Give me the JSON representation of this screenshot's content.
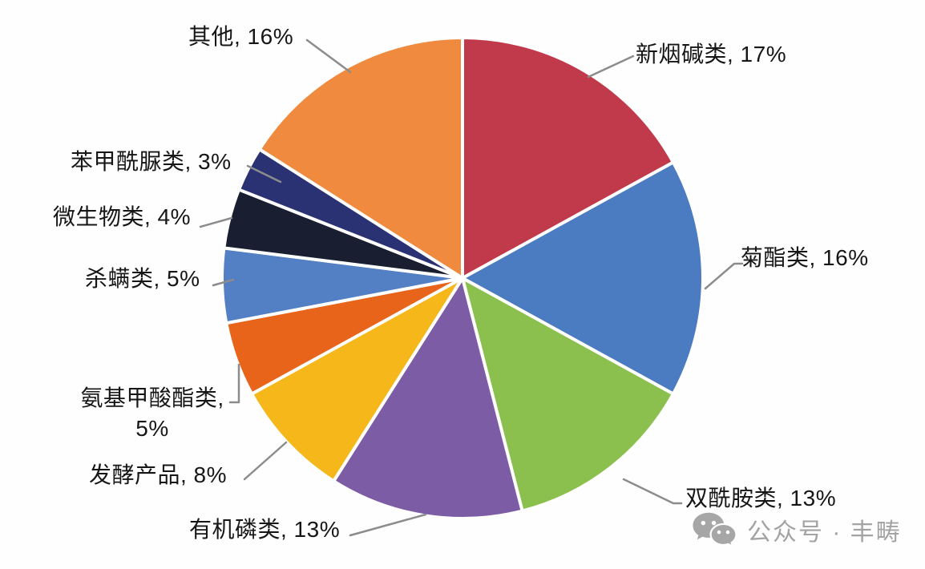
{
  "watermark": {
    "icon": "wechat-icon",
    "text": "公众号 · 丰畴"
  },
  "chart_data": {
    "type": "pie",
    "title": "",
    "start_angle_deg_from_top": 0,
    "direction": "clockwise",
    "legend_position": "outside-callout-labels",
    "leader_line_color": "#8c8c8c",
    "slice_border_color": "#ffffff",
    "label_color": "#161616",
    "watermark_color": "#a3a3a3",
    "slices": [
      {
        "name": "新烟碱类",
        "value": 17,
        "label": "新烟碱类, 17%",
        "color": "#c13a4b"
      },
      {
        "name": "菊酯类",
        "value": 16,
        "label": "菊酯类, 16%",
        "color": "#4b7bc1"
      },
      {
        "name": "双酰胺类",
        "value": 13,
        "label": "双酰胺类, 13%",
        "color": "#8cc04e"
      },
      {
        "name": "有机磷类",
        "value": 13,
        "label": "有机磷类, 13%",
        "color": "#7d5ca6"
      },
      {
        "name": "发酵产品",
        "value": 8,
        "label": "发酵产品, 8%",
        "color": "#f5b719"
      },
      {
        "name": "氨基甲酸酯类",
        "value": 5,
        "label": "氨基甲酸酯类, 5%",
        "label_line1": "氨基甲酸酯类,",
        "label_line2": "5%",
        "color": "#e7641a"
      },
      {
        "name": "杀螨类",
        "value": 5,
        "label": "杀螨类, 5%",
        "color": "#537fc4"
      },
      {
        "name": "微生物类",
        "value": 4,
        "label": "微生物类, 4%",
        "color": "#191e30"
      },
      {
        "name": "苯甲酰脲类",
        "value": 3,
        "label": "苯甲酰脲类, 3%",
        "color": "#2b3274"
      },
      {
        "name": "其他",
        "value": 16,
        "label": "其他, 16%",
        "color": "#ef8a3e"
      }
    ]
  }
}
